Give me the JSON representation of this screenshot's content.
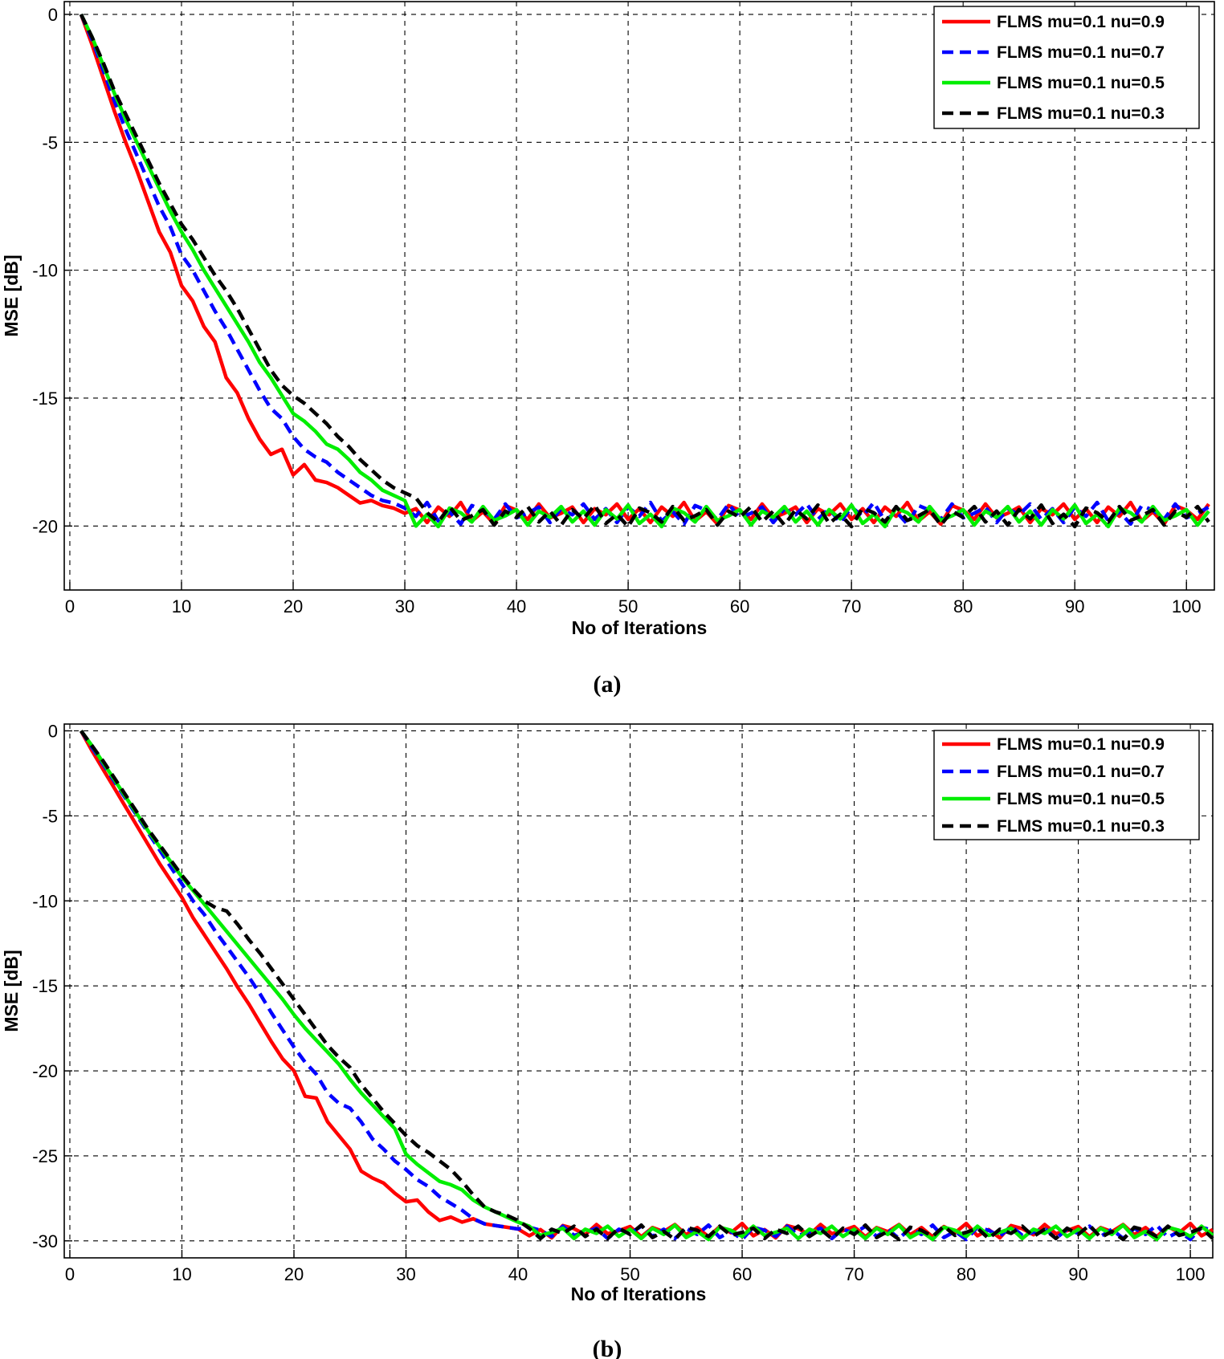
{
  "figure": {
    "caption_a": "(a)",
    "caption_b": "(b)"
  },
  "colors": {
    "nu09": "#ff0000",
    "nu07": "#0000ff",
    "nu05": "#00ee00",
    "nu03": "#000000"
  },
  "chart_data": [
    {
      "type": "line",
      "panel": "a",
      "xlabel": "No of Iterations",
      "ylabel": "MSE [dB]",
      "xlim": [
        -0.5,
        102.5
      ],
      "ylim": [
        -22.5,
        0.5
      ],
      "xticks": [
        0,
        10,
        20,
        30,
        40,
        50,
        60,
        70,
        80,
        90,
        100
      ],
      "yticks": [
        0,
        -5,
        -10,
        -15,
        -20
      ],
      "grid": true,
      "legend_position": "top-right",
      "series": [
        {
          "name": "FLMS mu=0.1 nu=0.9",
          "color": "#ff0000",
          "style": "solid",
          "steady": -19.5,
          "x": [
            1,
            2,
            3,
            4,
            5,
            6,
            7,
            8,
            9,
            10,
            11,
            12,
            13,
            14,
            15,
            16,
            17,
            18,
            19,
            20,
            21,
            22,
            23,
            24,
            25,
            26,
            27,
            28,
            29,
            30
          ],
          "y": [
            0,
            -1.2,
            -2.5,
            -3.8,
            -5.0,
            -6.1,
            -7.3,
            -8.5,
            -9.3,
            -10.6,
            -11.2,
            -12.2,
            -12.8,
            -14.2,
            -14.8,
            -15.8,
            -16.6,
            -17.2,
            -17.0,
            -18.0,
            -17.6,
            -18.2,
            -18.3,
            -18.5,
            -18.8,
            -19.1,
            -19.0,
            -19.2,
            -19.3,
            -19.5
          ]
        },
        {
          "name": "FLMS mu=0.1 nu=0.7",
          "color": "#0000ff",
          "style": "dashed",
          "steady": -19.5,
          "x": [
            1,
            2,
            3,
            4,
            5,
            6,
            7,
            8,
            9,
            10,
            11,
            12,
            13,
            14,
            15,
            16,
            17,
            18,
            19,
            20,
            21,
            22,
            23,
            24,
            25,
            26,
            27,
            28,
            29,
            30
          ],
          "y": [
            0,
            -1.0,
            -2.2,
            -3.4,
            -4.5,
            -5.5,
            -6.5,
            -7.5,
            -8.3,
            -9.4,
            -10.0,
            -10.8,
            -11.6,
            -12.3,
            -13.1,
            -13.9,
            -14.7,
            -15.4,
            -15.8,
            -16.5,
            -17.0,
            -17.3,
            -17.5,
            -17.9,
            -18.2,
            -18.5,
            -18.8,
            -19.0,
            -19.1,
            -19.3
          ]
        },
        {
          "name": "FLMS mu=0.1 nu=0.5",
          "color": "#00ee00",
          "style": "solid",
          "steady": -19.6,
          "x": [
            1,
            2,
            3,
            4,
            5,
            6,
            7,
            8,
            9,
            10,
            11,
            12,
            13,
            14,
            15,
            16,
            17,
            18,
            19,
            20,
            21,
            22,
            23,
            24,
            25,
            26,
            27,
            28,
            29,
            30,
            31
          ],
          "y": [
            0,
            -0.9,
            -2.0,
            -3.1,
            -4.1,
            -5.0,
            -5.9,
            -6.8,
            -7.7,
            -8.5,
            -9.2,
            -10.0,
            -10.7,
            -11.4,
            -12.1,
            -12.8,
            -13.6,
            -14.2,
            -14.9,
            -15.6,
            -15.9,
            -16.3,
            -16.8,
            -17.0,
            -17.4,
            -17.9,
            -18.2,
            -18.6,
            -18.8,
            -19.0,
            -20.0
          ]
        },
        {
          "name": "FLMS mu=0.1 nu=0.3",
          "color": "#000000",
          "style": "dashed",
          "steady": -19.6,
          "x": [
            1,
            2,
            3,
            4,
            5,
            6,
            7,
            8,
            9,
            10,
            11,
            12,
            13,
            14,
            15,
            16,
            17,
            18,
            19,
            20,
            21,
            22,
            23,
            24,
            25,
            26,
            27,
            28,
            29,
            30,
            31
          ],
          "y": [
            0,
            -0.9,
            -1.9,
            -3.0,
            -3.9,
            -4.8,
            -5.7,
            -6.6,
            -7.4,
            -8.2,
            -8.8,
            -9.5,
            -10.2,
            -10.8,
            -11.5,
            -12.3,
            -13.1,
            -13.9,
            -14.5,
            -14.9,
            -15.2,
            -15.6,
            -16.0,
            -16.5,
            -16.9,
            -17.4,
            -17.8,
            -18.2,
            -18.5,
            -18.7,
            -18.9
          ]
        }
      ]
    },
    {
      "type": "line",
      "panel": "b",
      "xlabel": "No of Iterations",
      "ylabel": "MSE [dB]",
      "xlim": [
        -0.5,
        102
      ],
      "ylim": [
        -31,
        0.4
      ],
      "xticks": [
        0,
        10,
        20,
        30,
        40,
        50,
        60,
        70,
        80,
        90,
        100
      ],
      "yticks": [
        0,
        -5,
        -10,
        -15,
        -20,
        -25,
        -30
      ],
      "grid": true,
      "legend_position": "top-right",
      "series": [
        {
          "name": "FLMS mu=0.1 nu=0.9",
          "color": "#ff0000",
          "style": "solid",
          "steady": -29.4,
          "x": [
            1,
            2,
            3,
            4,
            5,
            6,
            7,
            8,
            9,
            10,
            11,
            12,
            13,
            14,
            15,
            16,
            17,
            18,
            19,
            20,
            21,
            22,
            23,
            24,
            25,
            26,
            27,
            28,
            29,
            30,
            31,
            32,
            33,
            34,
            35,
            36,
            37,
            38,
            39,
            40
          ],
          "y": [
            0,
            -1.2,
            -2.3,
            -3.4,
            -4.5,
            -5.6,
            -6.7,
            -7.8,
            -8.8,
            -9.8,
            -11.0,
            -12.0,
            -13.0,
            -14.0,
            -15.1,
            -16.1,
            -17.2,
            -18.3,
            -19.3,
            -20.0,
            -21.5,
            -21.6,
            -23.0,
            -23.8,
            -24.6,
            -25.9,
            -26.3,
            -26.6,
            -27.2,
            -27.7,
            -27.6,
            -28.3,
            -28.8,
            -28.6,
            -28.9,
            -28.7,
            -29.0,
            -29.1,
            -29.2,
            -29.3
          ]
        },
        {
          "name": "FLMS mu=0.1 nu=0.7",
          "color": "#0000ff",
          "style": "dashed",
          "steady": -29.5,
          "x": [
            1,
            2,
            3,
            4,
            5,
            6,
            7,
            8,
            9,
            10,
            11,
            12,
            13,
            14,
            15,
            16,
            17,
            18,
            19,
            20,
            21,
            22,
            23,
            24,
            25,
            26,
            27,
            28,
            29,
            30,
            31,
            32,
            33,
            34,
            35,
            36,
            37,
            38,
            39,
            40
          ],
          "y": [
            0,
            -1.0,
            -2.0,
            -3.0,
            -4.0,
            -5.0,
            -6.0,
            -7.0,
            -8.0,
            -9.0,
            -10.0,
            -10.8,
            -11.8,
            -12.7,
            -13.6,
            -14.5,
            -15.5,
            -16.6,
            -17.6,
            -18.6,
            -19.5,
            -20.2,
            -21.3,
            -21.9,
            -22.2,
            -23.0,
            -24.0,
            -24.6,
            -25.3,
            -25.8,
            -26.4,
            -26.8,
            -27.4,
            -27.8,
            -28.2,
            -28.7,
            -29.0,
            -29.1,
            -29.2,
            -29.3
          ]
        },
        {
          "name": "FLMS mu=0.1 nu=0.5",
          "color": "#00ee00",
          "style": "solid",
          "steady": -29.5,
          "x": [
            1,
            2,
            3,
            4,
            5,
            6,
            7,
            8,
            9,
            10,
            11,
            12,
            13,
            14,
            15,
            16,
            17,
            18,
            19,
            20,
            21,
            22,
            23,
            24,
            25,
            26,
            27,
            28,
            29,
            30,
            31,
            32,
            33,
            34,
            35,
            36,
            37,
            38,
            39,
            40
          ],
          "y": [
            0,
            -0.9,
            -1.9,
            -2.9,
            -3.9,
            -4.9,
            -5.9,
            -6.8,
            -7.7,
            -8.6,
            -9.4,
            -10.2,
            -11.0,
            -11.8,
            -12.6,
            -13.4,
            -14.2,
            -15.0,
            -15.8,
            -16.7,
            -17.5,
            -18.2,
            -18.9,
            -19.6,
            -20.5,
            -21.3,
            -22.0,
            -22.7,
            -23.4,
            -24.9,
            -25.5,
            -26.0,
            -26.5,
            -26.7,
            -27.0,
            -27.6,
            -28.0,
            -28.3,
            -28.6,
            -28.9
          ]
        },
        {
          "name": "FLMS mu=0.1 nu=0.3",
          "color": "#000000",
          "style": "dashed",
          "steady": -29.5,
          "x": [
            1,
            2,
            3,
            4,
            5,
            6,
            7,
            8,
            9,
            10,
            11,
            12,
            13,
            14,
            15,
            16,
            17,
            18,
            19,
            20,
            21,
            22,
            23,
            24,
            25,
            26,
            27,
            28,
            29,
            30,
            31,
            32,
            33,
            34,
            35,
            36,
            37,
            38,
            39,
            40
          ],
          "y": [
            0,
            -0.9,
            -1.8,
            -2.8,
            -3.8,
            -4.8,
            -5.8,
            -6.7,
            -7.6,
            -8.5,
            -9.3,
            -10.0,
            -10.4,
            -10.6,
            -11.4,
            -12.3,
            -13.1,
            -14.0,
            -14.9,
            -15.8,
            -16.7,
            -17.6,
            -18.5,
            -19.2,
            -19.8,
            -20.8,
            -21.6,
            -22.4,
            -23.1,
            -23.8,
            -24.4,
            -24.8,
            -25.3,
            -25.8,
            -26.5,
            -27.3,
            -28.0,
            -28.3,
            -28.5,
            -28.8
          ]
        }
      ]
    }
  ]
}
